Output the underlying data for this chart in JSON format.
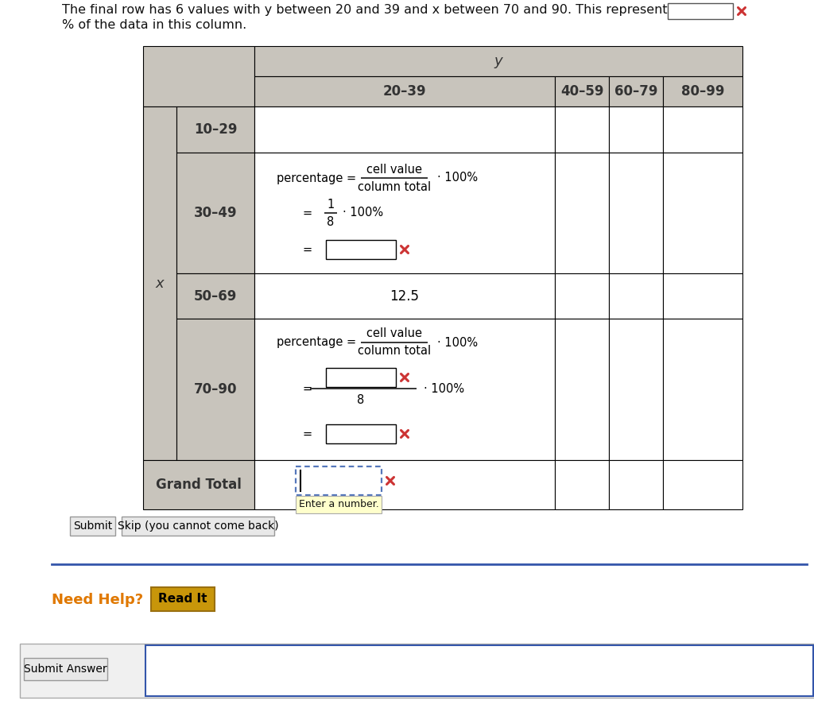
{
  "bg_color": "#ffffff",
  "header_text": "The final row has 6 values with y between 20 and 39 and x between 70 and 90. This represents",
  "header_text2": "% of the data in this column.",
  "table_header_bg": "#c8c4bc",
  "cell_bg": "#ffffff",
  "grand_total_label_bg": "#c8c4bc",
  "y_label": "y",
  "col_headers": [
    "20–39",
    "40–59",
    "60–79",
    "80–99"
  ],
  "row_headers": [
    "10–29",
    "30–49",
    "50–69",
    "70–90",
    "Grand Total"
  ],
  "x_label": "x",
  "submit_text": "Submit",
  "skip_text": "Skip (you cannot come back)",
  "need_help_text": "Need Help?",
  "read_it_text": "Read It",
  "submit_answer_text": "Submit Answer",
  "tooltip_text": "Enter a number.",
  "value_12_5": "12.5",
  "fraction_num": "1",
  "fraction_den": "8",
  "cell_value_text": "cell value",
  "column_total_text": "column total",
  "percentage_text": "percentage =",
  "times_100_text": "· 100%",
  "equals_text": "=",
  "x_marker_color": "#cc3333",
  "dotted_border_color": "#5577bb",
  "separator_color": "#3355aa",
  "need_help_color": "#e07800",
  "read_it_bg": "#c8960a",
  "read_it_border": "#9a7010",
  "btn_bg": "#e8e8e8",
  "btn_border": "#999999",
  "submit_ans_box_border": "#3355aa",
  "outer_border_bg": "#f0f0f0",
  "outer_border_color": "#aaaaaa",
  "tooltip_bg": "#ffffcc",
  "tooltip_border": "#aaaaaa"
}
